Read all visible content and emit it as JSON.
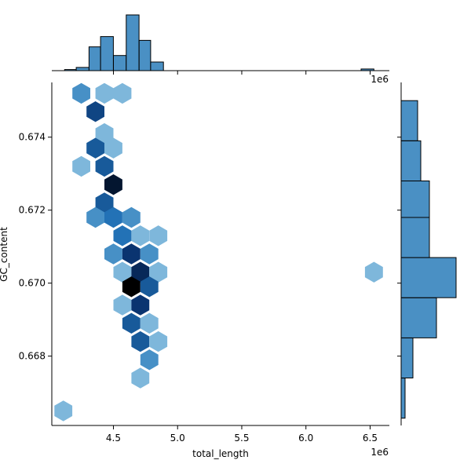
{
  "chart_data": {
    "type": "hexbin",
    "title": "",
    "xlabel": "total_length",
    "ylabel": "GC_content",
    "x_offset_label": "1e6",
    "xlim": [
      4.02,
      6.65
    ],
    "ylim": [
      0.6661,
      0.6755
    ],
    "x_ticks": [
      {
        "value": 4.5,
        "label": "4.5"
      },
      {
        "value": 5.0,
        "label": "5.0"
      },
      {
        "value": 5.5,
        "label": "5.5"
      },
      {
        "value": 6.0,
        "label": "6.0"
      },
      {
        "value": 6.5,
        "label": "6.5"
      }
    ],
    "y_ticks": [
      {
        "value": 0.668,
        "label": "0.668"
      },
      {
        "value": 0.67,
        "label": "0.670"
      },
      {
        "value": 0.672,
        "label": "0.672"
      },
      {
        "value": 0.674,
        "label": "0.674"
      }
    ],
    "colormap": [
      "#ffffff",
      "#c6dbef",
      "#6baed6",
      "#2171b5",
      "#08306b",
      "#000000"
    ],
    "hexbins": [
      {
        "x": 4.25,
        "y": 0.6752,
        "count": 2
      },
      {
        "x": 4.43,
        "y": 0.6752,
        "count": 1
      },
      {
        "x": 4.57,
        "y": 0.6752,
        "count": 1
      },
      {
        "x": 4.36,
        "y": 0.6747,
        "count": 5
      },
      {
        "x": 4.43,
        "y": 0.6741,
        "count": 1
      },
      {
        "x": 4.36,
        "y": 0.6737,
        "count": 4
      },
      {
        "x": 4.5,
        "y": 0.6737,
        "count": 1
      },
      {
        "x": 4.25,
        "y": 0.6732,
        "count": 1
      },
      {
        "x": 4.43,
        "y": 0.6732,
        "count": 4
      },
      {
        "x": 4.5,
        "y": 0.6727,
        "count": 9
      },
      {
        "x": 4.43,
        "y": 0.6722,
        "count": 4
      },
      {
        "x": 4.36,
        "y": 0.6718,
        "count": 2
      },
      {
        "x": 4.5,
        "y": 0.6718,
        "count": 3
      },
      {
        "x": 4.64,
        "y": 0.6718,
        "count": 2
      },
      {
        "x": 4.57,
        "y": 0.6713,
        "count": 3
      },
      {
        "x": 4.71,
        "y": 0.6713,
        "count": 1
      },
      {
        "x": 4.85,
        "y": 0.6713,
        "count": 1
      },
      {
        "x": 4.5,
        "y": 0.6708,
        "count": 2
      },
      {
        "x": 4.64,
        "y": 0.6708,
        "count": 6
      },
      {
        "x": 4.78,
        "y": 0.6708,
        "count": 2
      },
      {
        "x": 4.57,
        "y": 0.6703,
        "count": 1
      },
      {
        "x": 4.71,
        "y": 0.6703,
        "count": 7
      },
      {
        "x": 4.85,
        "y": 0.6703,
        "count": 1
      },
      {
        "x": 6.53,
        "y": 0.6703,
        "count": 1
      },
      {
        "x": 4.64,
        "y": 0.6699,
        "count": 12
      },
      {
        "x": 4.78,
        "y": 0.6699,
        "count": 4
      },
      {
        "x": 4.57,
        "y": 0.6694,
        "count": 1
      },
      {
        "x": 4.71,
        "y": 0.6694,
        "count": 6
      },
      {
        "x": 4.64,
        "y": 0.6689,
        "count": 4
      },
      {
        "x": 4.78,
        "y": 0.6689,
        "count": 1
      },
      {
        "x": 4.71,
        "y": 0.6684,
        "count": 4
      },
      {
        "x": 4.85,
        "y": 0.6684,
        "count": 1
      },
      {
        "x": 4.78,
        "y": 0.6679,
        "count": 2
      },
      {
        "x": 4.71,
        "y": 0.6674,
        "count": 1
      },
      {
        "x": 4.11,
        "y": 0.6665,
        "count": 1
      }
    ],
    "x_histogram": [
      {
        "x0": 4.12,
        "x1": 4.21,
        "count": 0.2
      },
      {
        "x0": 4.21,
        "x1": 4.31,
        "count": 0.6
      },
      {
        "x0": 4.31,
        "x1": 4.4,
        "count": 4.4
      },
      {
        "x0": 4.4,
        "x1": 4.5,
        "count": 6.3
      },
      {
        "x0": 4.5,
        "x1": 4.6,
        "count": 2.8
      },
      {
        "x0": 4.6,
        "x1": 4.7,
        "count": 10.3
      },
      {
        "x0": 4.7,
        "x1": 4.79,
        "count": 5.6
      },
      {
        "x0": 4.79,
        "x1": 4.89,
        "count": 1.6
      },
      {
        "x0": 6.43,
        "x1": 6.53,
        "count": 0.3
      }
    ],
    "y_histogram": [
      {
        "y0": 0.6663,
        "y1": 0.6674,
        "count": 1
      },
      {
        "y0": 0.6674,
        "y1": 0.6685,
        "count": 3
      },
      {
        "y0": 0.6685,
        "y1": 0.6696,
        "count": 9
      },
      {
        "y0": 0.6696,
        "y1": 0.6707,
        "count": 14
      },
      {
        "y0": 0.6707,
        "y1": 0.6718,
        "count": 7.2
      },
      {
        "y0": 0.6718,
        "y1": 0.6728,
        "count": 7.2
      },
      {
        "y0": 0.6728,
        "y1": 0.6739,
        "count": 5
      },
      {
        "y0": 0.6739,
        "y1": 0.675,
        "count": 4.2
      }
    ],
    "bar_color": "#4a90c4"
  }
}
